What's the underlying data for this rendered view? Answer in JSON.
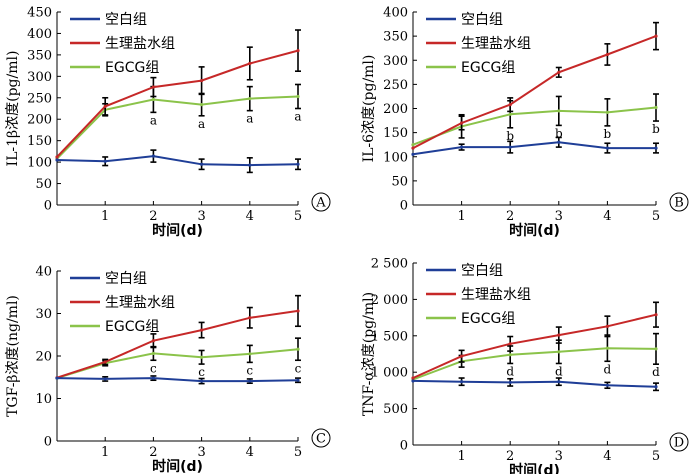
{
  "colors": {
    "blank": "#1f3e97",
    "saline": "#c62828",
    "egcg": "#8bc34a",
    "axis": "#000000",
    "error": "#000000"
  },
  "chart_data": [
    {
      "type": "line",
      "panel": "A",
      "ylabel": "IL-1β浓度(pg/ml)",
      "xlabel": "时间(d)",
      "x": [
        0,
        1,
        2,
        3,
        4,
        5
      ],
      "xticks": [
        "1",
        "2",
        "3",
        "4",
        "5"
      ],
      "xlim": [
        0,
        5
      ],
      "ylim": [
        0,
        450
      ],
      "yticks": [
        "0",
        "50",
        "100",
        "150",
        "200",
        "250",
        "300",
        "350",
        "400",
        "450"
      ],
      "legend_position": "top-left",
      "series": [
        {
          "name": "空白组",
          "color_key": "blank",
          "values": [
            105,
            102,
            114,
            95,
            93,
            95
          ],
          "errors": [
            0,
            10,
            14,
            12,
            17,
            12
          ]
        },
        {
          "name": "生理盐水组",
          "color_key": "saline",
          "values": [
            112,
            230,
            275,
            290,
            330,
            360
          ],
          "errors": [
            0,
            20,
            22,
            32,
            38,
            48
          ]
        },
        {
          "name": "EGCG组",
          "color_key": "egcg",
          "values": [
            108,
            222,
            246,
            234,
            248,
            253
          ],
          "errors": [
            0,
            14,
            30,
            26,
            28,
            28
          ],
          "sig_labels": [
            "",
            "",
            "a",
            "a",
            "a",
            "a"
          ]
        }
      ]
    },
    {
      "type": "line",
      "panel": "B",
      "ylabel": "IL-6浓度(pg/ml)",
      "xlabel": "时间(d)",
      "x": [
        0,
        1,
        2,
        3,
        4,
        5
      ],
      "xticks": [
        "1",
        "2",
        "3",
        "4",
        "5"
      ],
      "xlim": [
        0,
        5
      ],
      "ylim": [
        0,
        400
      ],
      "yticks": [
        "0",
        "50",
        "100",
        "150",
        "200",
        "250",
        "300",
        "350",
        "400"
      ],
      "legend_position": "top-left",
      "series": [
        {
          "name": "空白组",
          "color_key": "blank",
          "values": [
            105,
            120,
            120,
            130,
            118,
            118
          ],
          "errors": [
            0,
            6,
            12,
            10,
            10,
            10
          ]
        },
        {
          "name": "生理盐水组",
          "color_key": "saline",
          "values": [
            118,
            170,
            208,
            275,
            312,
            350
          ],
          "errors": [
            0,
            14,
            14,
            10,
            22,
            28
          ]
        },
        {
          "name": "EGCG组",
          "color_key": "egcg",
          "values": [
            125,
            163,
            188,
            195,
            192,
            202
          ],
          "errors": [
            0,
            24,
            28,
            30,
            28,
            28
          ],
          "sig_labels": [
            "",
            "",
            "b",
            "b",
            "b",
            "b"
          ]
        }
      ]
    },
    {
      "type": "line",
      "panel": "C",
      "ylabel": "TGF-β浓度(ng/ml)",
      "xlabel": "时间(d)",
      "x": [
        0,
        1,
        2,
        3,
        4,
        5
      ],
      "xticks": [
        "1",
        "2",
        "3",
        "4",
        "5"
      ],
      "xlim": [
        0,
        5
      ],
      "ylim": [
        0,
        40
      ],
      "yticks": [
        "0",
        "10",
        "20",
        "30",
        "40"
      ],
      "legend_position": "top-left",
      "series": [
        {
          "name": "空白组",
          "color_key": "blank",
          "values": [
            14.8,
            14.6,
            14.8,
            14.1,
            14.1,
            14.3
          ],
          "errors": [
            0,
            0.5,
            0.5,
            0.6,
            0.5,
            0.5
          ]
        },
        {
          "name": "生理盐水组",
          "color_key": "saline",
          "values": [
            14.9,
            18.6,
            23.6,
            26.1,
            29.0,
            30.6
          ],
          "errors": [
            0,
            0.6,
            1.6,
            1.8,
            2.4,
            3.6
          ]
        },
        {
          "name": "EGCG组",
          "color_key": "egcg",
          "values": [
            14.8,
            18.3,
            20.6,
            19.7,
            20.5,
            21.6
          ],
          "errors": [
            0,
            0.6,
            1.6,
            1.6,
            2.0,
            2.6
          ],
          "sig_labels": [
            "",
            "",
            "c",
            "c",
            "c",
            "c"
          ]
        }
      ]
    },
    {
      "type": "line",
      "panel": "D",
      "ylabel": "TNF-α浓度(pg/ml)",
      "xlabel": "时间(d)",
      "x": [
        0,
        1,
        2,
        3,
        4,
        5
      ],
      "xticks": [
        "1",
        "2",
        "3",
        "4",
        "5"
      ],
      "xlim": [
        0,
        5
      ],
      "ylim": [
        0,
        2500
      ],
      "yticks": [
        "0",
        "500",
        "1 000",
        "1 500",
        "2 000",
        "2 500"
      ],
      "legend_position": "top-left",
      "series": [
        {
          "name": "空白组",
          "color_key": "blank",
          "values": [
            880,
            870,
            860,
            870,
            820,
            800
          ],
          "errors": [
            0,
            50,
            50,
            50,
            40,
            50
          ]
        },
        {
          "name": "生理盐水组",
          "color_key": "saline",
          "values": [
            920,
            1220,
            1390,
            1510,
            1630,
            1790
          ],
          "errors": [
            0,
            80,
            100,
            110,
            140,
            170
          ]
        },
        {
          "name": "EGCG组",
          "color_key": "egcg",
          "values": [
            900,
            1150,
            1240,
            1280,
            1330,
            1320
          ],
          "errors": [
            0,
            80,
            120,
            160,
            180,
            210
          ],
          "sig_labels": [
            "",
            "",
            "d",
            "d",
            "d",
            "d"
          ]
        }
      ]
    }
  ]
}
